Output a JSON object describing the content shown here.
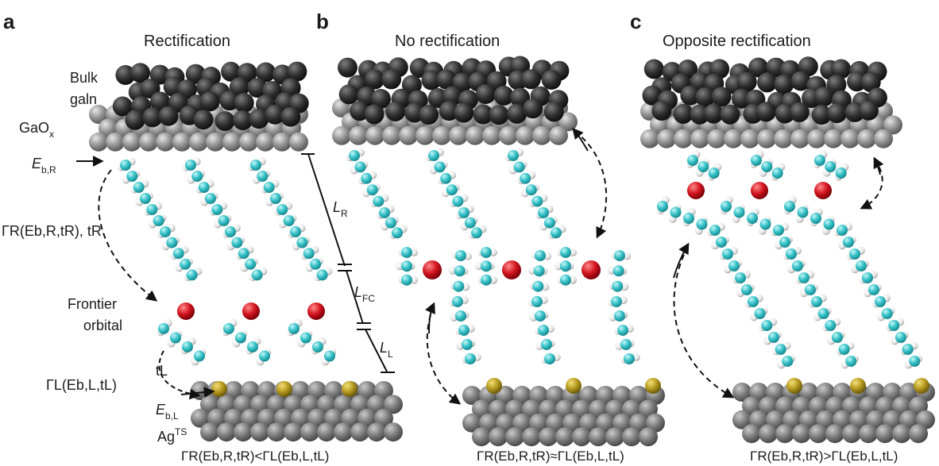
{
  "panels": [
    {
      "letter": "a",
      "title": "Rectification",
      "labels": {
        "bulk": "Bulk",
        "galn": "galn",
        "oxide": "GaO",
        "oxide_sub": "x",
        "eb_r": "E",
        "eb_r_sub": "b,R",
        "gamma_r": "ΓR(Eb,R,tR), tR",
        "frontier_1": "Frontier",
        "frontier_2": "orbital",
        "gamma_l": "ΓL(Eb,L,tL)",
        "t_l": "tL",
        "eb_l": "E",
        "eb_l_sub": "b,L",
        "substrate": "Ag",
        "substrate_sup": "TS"
      },
      "condition": "ΓR(Eb,R,tR)<ΓL(Eb,L,tL)"
    },
    {
      "letter": "b",
      "title": "No rectification",
      "dimensions": {
        "l_r": "L",
        "l_r_sub": "R",
        "l_fc": "L",
        "l_fc_sub": "FC",
        "l_l": "L",
        "l_l_sub": "L"
      },
      "condition": "ΓR(Eb,R,tR)≈ΓL(Eb,L,tL)"
    },
    {
      "letter": "c",
      "title": "Opposite rectification",
      "condition": "ΓR(Eb,R,tR)>ΓL(Eb,L,tL)"
    }
  ],
  "colors": {
    "top_electrode": "#2b2b2b",
    "oxide_layer": "#8c8c8c",
    "bottom_electrode": "#7a7a7a",
    "carbon": "#35c2c8",
    "hydrogen": "#eeeeee",
    "frontier_orbital": "#d2141e",
    "sulfur": "#b69a1f"
  }
}
